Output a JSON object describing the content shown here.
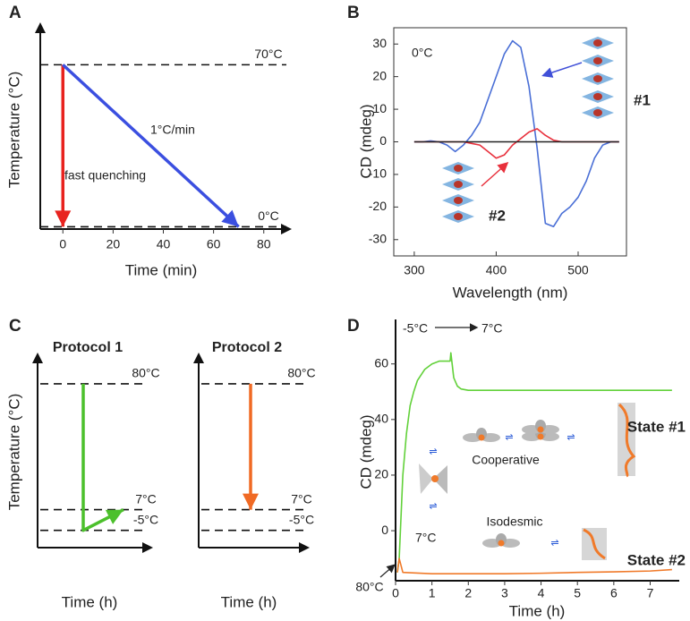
{
  "chart_data": [
    {
      "panel": "A",
      "type": "line",
      "xlabel": "Time (min)",
      "ylabel": "Temperature (°C)",
      "xlim": [
        -9,
        89
      ],
      "xticks": [
        0,
        20,
        40,
        60,
        80
      ],
      "ylim": [
        -1,
        86
      ],
      "hlines": [
        {
          "value": 70,
          "label": "70°C"
        },
        {
          "value": 0,
          "label": "0°C"
        }
      ],
      "series": [
        {
          "name": "fast quenching",
          "color": "#e8231f",
          "x": [
            0,
            0
          ],
          "values": [
            70,
            0
          ]
        },
        {
          "name": "1°C/min",
          "color": "#3b4fe0",
          "x": [
            0,
            70
          ],
          "values": [
            70,
            0
          ]
        }
      ]
    },
    {
      "panel": "B",
      "type": "line",
      "xlabel": "Wavelength (nm)",
      "ylabel": "CD (mdeg)",
      "xlim": [
        275,
        559
      ],
      "xticks": [
        300,
        400,
        500
      ],
      "ylim": [
        -35,
        35
      ],
      "yticks": [
        -30,
        -20,
        -10,
        0,
        10,
        20,
        30
      ],
      "annotations": [
        "0°C"
      ],
      "x": [
        300,
        310,
        320,
        330,
        340,
        350,
        360,
        370,
        380,
        390,
        400,
        410,
        420,
        430,
        440,
        450,
        460,
        470,
        480,
        490,
        500,
        510,
        520,
        530,
        540,
        550
      ],
      "series": [
        {
          "name": "#1",
          "color": "#4a6fd6",
          "values": [
            0,
            0,
            0.3,
            0,
            -1,
            -3,
            -1,
            2,
            6,
            13,
            20,
            27,
            31,
            29,
            17,
            -2,
            -25,
            -26,
            -22,
            -20,
            -17,
            -12,
            -5,
            -1,
            0,
            0
          ]
        },
        {
          "name": "#2",
          "color": "#e8303c",
          "values": [
            0,
            0,
            0,
            0,
            0,
            0,
            0,
            -0.5,
            -1,
            -3,
            -5,
            -4,
            -1,
            1,
            3,
            4,
            2,
            0.5,
            0,
            0,
            0,
            0,
            0,
            0,
            0,
            0
          ]
        },
        {
          "color": "#222222",
          "values": [
            0,
            0,
            0,
            0,
            0,
            0,
            0,
            0,
            0,
            0,
            0,
            0,
            0,
            0,
            0,
            0,
            0,
            0,
            0,
            0,
            0,
            0,
            0,
            0,
            0,
            0
          ]
        }
      ]
    },
    {
      "panel": "C",
      "type": "line",
      "title": "Protocol 1",
      "xlabel": "Time (h)",
      "ylabel": "Temperature (°C)",
      "ylim": [
        -15,
        95
      ],
      "hlines": [
        {
          "value": 80,
          "label": "80°C"
        },
        {
          "value": 7,
          "label": "7°C"
        },
        {
          "value": -5,
          "label": "-5°C"
        }
      ],
      "series": [
        {
          "color": "#4cc02c",
          "values": [
            80,
            -5,
            7
          ]
        }
      ]
    },
    {
      "type": "line",
      "title": "Protocol 2",
      "xlabel": "Time (h)",
      "ylim": [
        -15,
        95
      ],
      "hlines": [
        {
          "value": 80,
          "label": "80°C"
        },
        {
          "value": 7,
          "label": "7°C"
        },
        {
          "value": -5,
          "label": "-5°C"
        }
      ],
      "series": [
        {
          "color": "#f06a24",
          "values": [
            80,
            7
          ]
        }
      ]
    },
    {
      "panel": "D",
      "type": "line",
      "xlabel": "Time (h)",
      "ylabel": "CD (mdeg)",
      "xlim": [
        0,
        7.8
      ],
      "xticks": [
        0,
        1,
        2,
        3,
        4,
        5,
        6,
        7
      ],
      "ylim": [
        -18,
        76
      ],
      "yticks": [
        0,
        20,
        40,
        60
      ],
      "annotations": [
        "-5°C",
        "7°C",
        "7°C",
        "80°C",
        "Cooperative",
        "Isodesmic"
      ],
      "series": [
        {
          "name": "State #1",
          "color": "#62d13a",
          "x": [
            0.05,
            0.1,
            0.15,
            0.2,
            0.3,
            0.4,
            0.5,
            0.6,
            0.8,
            1.0,
            1.2,
            1.5,
            1.52,
            1.6,
            1.7,
            1.8,
            2,
            3,
            4,
            5,
            6,
            7,
            7.6
          ],
          "values": [
            -15,
            -10,
            5,
            20,
            35,
            45,
            50,
            54,
            58,
            60,
            61,
            61,
            64,
            55,
            52,
            51,
            50.5,
            50.5,
            50.5,
            50.5,
            50.5,
            50.5,
            50.5
          ]
        },
        {
          "name": "State #2",
          "color": "#f07a2a",
          "x": [
            0.05,
            0.1,
            0.2,
            1,
            2,
            3,
            4,
            5,
            6,
            7,
            7.6
          ],
          "values": [
            -15,
            -10,
            -15,
            -15.5,
            -15.5,
            -15.5,
            -15.3,
            -15,
            -14.8,
            -14.5,
            -14
          ]
        }
      ]
    }
  ]
}
